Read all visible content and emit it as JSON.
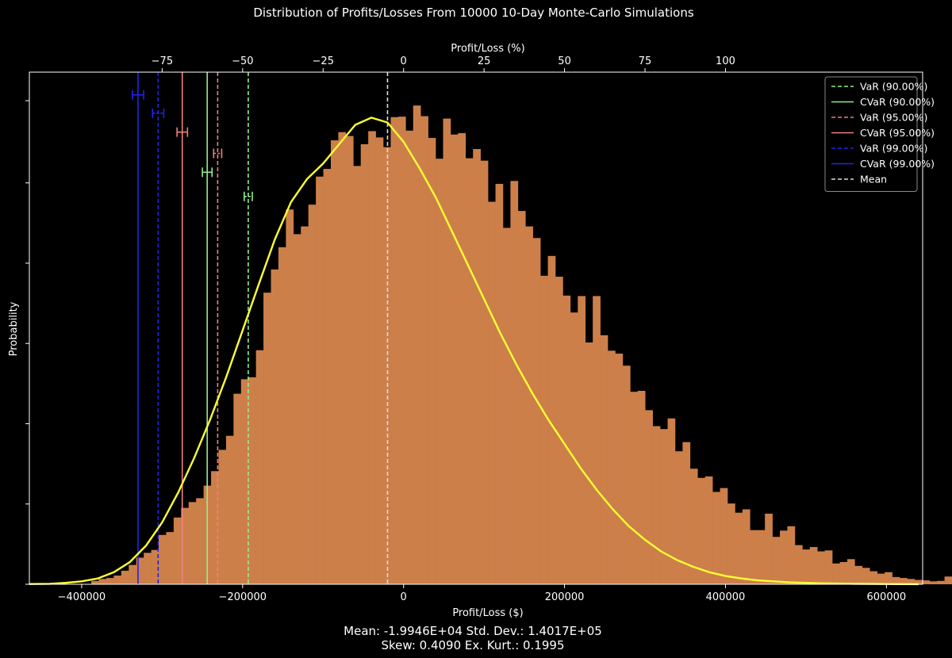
{
  "chart_data": {
    "type": "histogram",
    "title": "Distribution of Profits/Losses From 10000 10-Day Monte-Carlo Simulations",
    "xlabel": "Profit/Loss ($)",
    "ylabel": "Probability",
    "top_xlabel": "Profit/Loss (%)",
    "xlim": [
      -465000,
      645000
    ],
    "ylim": [
      0,
      1
    ],
    "x_ticks": [
      -400000,
      -200000,
      0,
      200000,
      400000,
      600000
    ],
    "x_tick_labels": [
      "−400000",
      "−200000",
      "0",
      "200000",
      "400000",
      "600000"
    ],
    "top_ticks_dollar": [
      -75000,
      -50000,
      -25000,
      0,
      25000,
      50000,
      75000,
      100000
    ],
    "top_tick_labels": [
      "−75",
      "−50",
      "−25",
      "0",
      "25",
      "50",
      "75",
      "100"
    ],
    "top_ticks_dollar_scale": 4.0,
    "y_ticks": [
      0,
      0.166,
      0.332,
      0.498,
      0.664,
      0.83,
      1.0
    ],
    "colors": {
      "bars": "#CD7F4A",
      "kde": "#FFFF33",
      "background": "#000000",
      "axes": "#FFFFFF",
      "var90": "#90EE90",
      "var95": "#F08080",
      "var99": "#2222EE",
      "mean": "#DDDDDD"
    },
    "bins": {
      "start": -388000,
      "width": 9300,
      "heights": [
        0.007,
        0.011,
        0.013,
        0.018,
        0.028,
        0.04,
        0.055,
        0.065,
        0.071,
        0.102,
        0.108,
        0.138,
        0.158,
        0.17,
        0.178,
        0.204,
        0.234,
        0.278,
        0.307,
        0.394,
        0.424,
        0.428,
        0.484,
        0.603,
        0.651,
        0.697,
        0.775,
        0.724,
        0.74,
        0.785,
        0.843,
        0.859,
        0.918,
        0.935,
        0.927,
        0.865,
        0.91,
        0.937,
        0.924,
        0.904,
        0.966,
        0.967,
        0.938,
        0.99,
        0.968,
        0.923,
        0.88,
        0.963,
        0.93,
        0.933,
        0.881,
        0.9,
        0.876,
        0.791,
        0.828,
        0.737,
        0.834,
        0.772,
        0.74,
        0.716,
        0.638,
        0.679,
        0.636,
        0.597,
        0.562,
        0.596,
        0.5,
        0.596,
        0.515,
        0.483,
        0.477,
        0.452,
        0.398,
        0.4,
        0.36,
        0.327,
        0.321,
        0.343,
        0.275,
        0.294,
        0.239,
        0.22,
        0.223,
        0.191,
        0.199,
        0.167,
        0.148,
        0.155,
        0.112,
        0.112,
        0.146,
        0.098,
        0.111,
        0.12,
        0.081,
        0.072,
        0.077,
        0.068,
        0.07,
        0.043,
        0.046,
        0.052,
        0.038,
        0.034,
        0.027,
        0.022,
        0.025,
        0.015,
        0.013,
        0.011,
        0.009,
        0.008,
        0.006,
        0.007,
        0.016,
        0.008,
        0.006,
        0.004,
        0.003,
        0.003,
        0.002,
        0.002,
        0.001,
        0.001,
        0.0005,
        0.0005
      ]
    },
    "kde": {
      "x": [
        -465000,
        -440000,
        -420000,
        -400000,
        -380000,
        -360000,
        -340000,
        -320000,
        -300000,
        -280000,
        -260000,
        -240000,
        -220000,
        -200000,
        -180000,
        -160000,
        -140000,
        -120000,
        -100000,
        -80000,
        -60000,
        -40000,
        -20000,
        0,
        20000,
        40000,
        60000,
        80000,
        100000,
        120000,
        140000,
        160000,
        180000,
        200000,
        220000,
        240000,
        260000,
        280000,
        300000,
        320000,
        340000,
        360000,
        380000,
        400000,
        420000,
        440000,
        460000,
        480000,
        500000,
        520000,
        540000,
        560000,
        580000,
        600000,
        620000,
        640000
      ],
      "y": [
        0.0005,
        0.001,
        0.003,
        0.006,
        0.012,
        0.025,
        0.046,
        0.08,
        0.128,
        0.19,
        0.262,
        0.342,
        0.43,
        0.525,
        0.62,
        0.713,
        0.79,
        0.838,
        0.87,
        0.91,
        0.95,
        0.965,
        0.955,
        0.915,
        0.86,
        0.8,
        0.73,
        0.66,
        0.59,
        0.52,
        0.455,
        0.395,
        0.34,
        0.29,
        0.24,
        0.195,
        0.155,
        0.12,
        0.092,
        0.068,
        0.05,
        0.036,
        0.025,
        0.017,
        0.012,
        0.008,
        0.006,
        0.004,
        0.003,
        0.002,
        0.0015,
        0.001,
        0.0008,
        0.0005,
        0.0003,
        0.0002
      ]
    },
    "vlines": [
      {
        "name": "VaR (90.00%)",
        "x": -193000,
        "style": "dashed",
        "color": "#90EE90",
        "marker_y": 0.802,
        "marker_half_width": 5000,
        "marker_style": "dashed"
      },
      {
        "name": "CVaR (90.00%)",
        "x": -244000,
        "style": "solid",
        "color": "#90EE90",
        "marker_y": 0.852,
        "marker_half_width": 6000,
        "marker_style": "solid"
      },
      {
        "name": "VaR (95.00%)",
        "x": -231000,
        "style": "dashed",
        "color": "#F08080",
        "marker_y": 0.891,
        "marker_half_width": 5000,
        "marker_style": "dashed"
      },
      {
        "name": "CVaR (95.00%)",
        "x": -275000,
        "style": "solid",
        "color": "#F08080",
        "marker_y": 0.935,
        "marker_half_width": 6500,
        "marker_style": "solid"
      },
      {
        "name": "VaR (99.00%)",
        "x": -305000,
        "style": "dashed",
        "color": "#2222EE",
        "marker_y": 0.974,
        "marker_half_width": 7000,
        "marker_style": "dashed"
      },
      {
        "name": "CVaR (99.00%)",
        "x": -330000,
        "style": "solid",
        "color": "#2222EE",
        "marker_y": 1.012,
        "marker_half_width": 7000,
        "marker_style": "solid"
      },
      {
        "name": "Mean",
        "x": -19946,
        "style": "dashed",
        "color": "#DDDDDD"
      }
    ],
    "legend": {
      "placement": "top-right",
      "entries": [
        {
          "label": "VaR (90.00%)",
          "color": "#90EE90",
          "style": "dashed"
        },
        {
          "label": "CVaR (90.00%)",
          "color": "#90EE90",
          "style": "solid"
        },
        {
          "label": "VaR (95.00%)",
          "color": "#F08080",
          "style": "dashed"
        },
        {
          "label": "CVaR (95.00%)",
          "color": "#F08080",
          "style": "solid"
        },
        {
          "label": "VaR (99.00%)",
          "color": "#2222EE",
          "style": "dashed"
        },
        {
          "label": "CVaR (99.00%)",
          "color": "#2222EE",
          "style": "solid"
        },
        {
          "label": "Mean",
          "color": "#DDDDDD",
          "style": "dashed"
        }
      ]
    },
    "stats": {
      "line1": "Mean: -1.9946E+04   Std. Dev.: 1.4017E+05",
      "line2": "Skew: 0.4090   Ex. Kurt.: 0.1995"
    }
  }
}
